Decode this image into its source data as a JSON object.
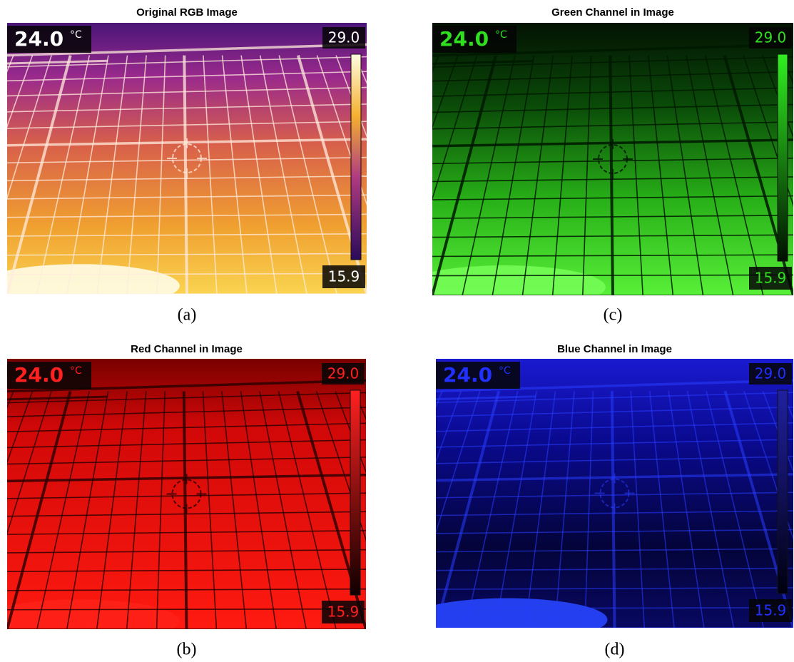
{
  "panels": [
    {
      "title": "Original RGB Image",
      "reading": "24.0",
      "unit": "°C",
      "scale_max": "29.0",
      "scale_min": "15.9",
      "caption": "(a)"
    },
    {
      "title": "Red Channel in Image",
      "reading": "24.0",
      "unit": "°C",
      "scale_max": "29.0",
      "scale_min": "15.9",
      "caption": "(b)"
    },
    {
      "title": "Green Channel in Image",
      "reading": "24.0",
      "unit": "°C",
      "scale_max": "29.0",
      "scale_min": "15.9",
      "caption": "(c)"
    },
    {
      "title": "Blue Channel in Image",
      "reading": "24.0",
      "unit": "°C",
      "scale_max": "29.0",
      "scale_min": "15.9",
      "caption": "(d)"
    }
  ]
}
